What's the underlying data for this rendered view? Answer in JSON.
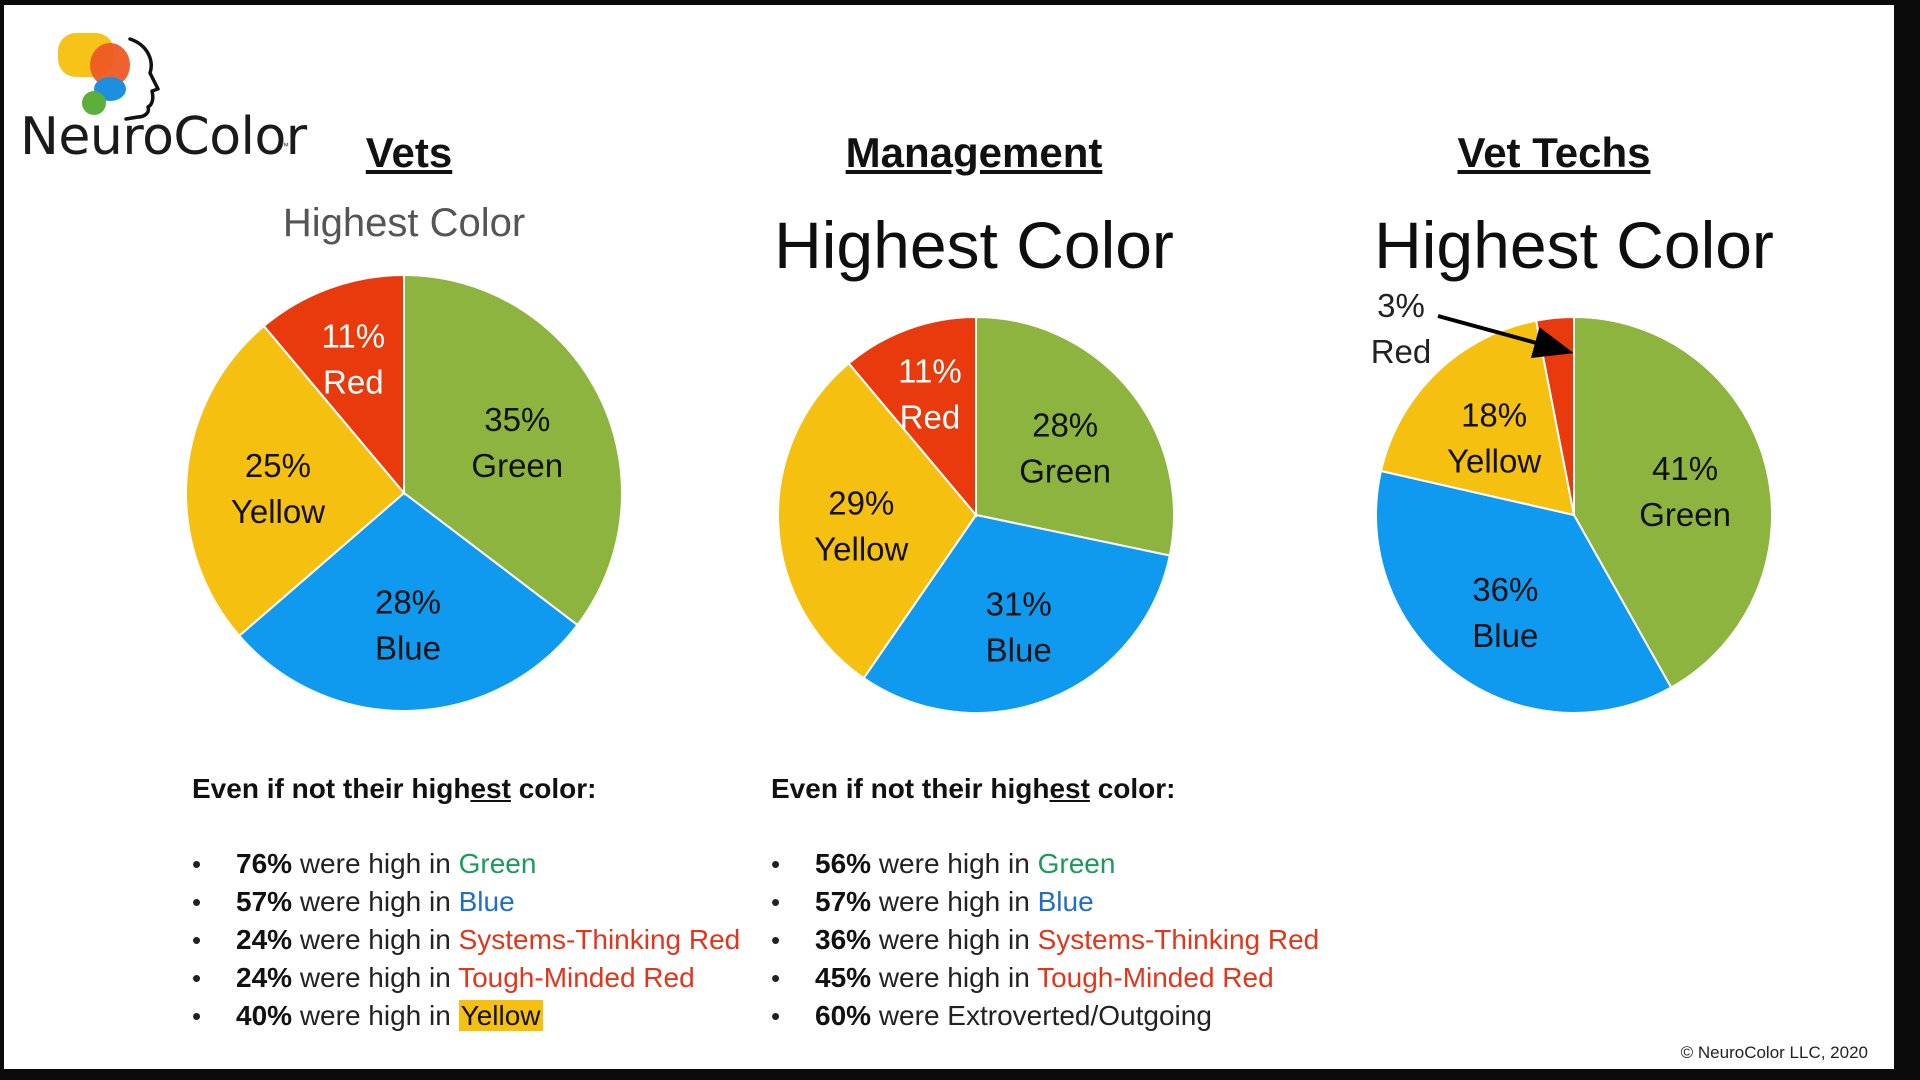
{
  "logo": {
    "text": "NeuroColor",
    "tm": "™"
  },
  "colors": {
    "green": "#8CB43F",
    "blue": "#0F9AF0",
    "yellow": "#F5C010",
    "red": "#E83A0D",
    "green_text": "#1C9A5A",
    "blue_text": "#1F6FC6",
    "red_text": "#E0361B",
    "yellow_highlight": "#F5C010"
  },
  "charts": [
    {
      "group": "Vets",
      "title": "Highest Color",
      "title_style": "small",
      "chart_data": {
        "type": "pie",
        "slices": [
          {
            "label": "Green",
            "value": 35,
            "pct": "35%",
            "color": "#8CB43F",
            "text_color": "#111111"
          },
          {
            "label": "Blue",
            "value": 28,
            "pct": "28%",
            "color": "#0F9AF0",
            "text_color": "#111111"
          },
          {
            "label": "Yellow",
            "value": 25,
            "pct": "25%",
            "color": "#F5C010",
            "text_color": "#111111"
          },
          {
            "label": "Red",
            "value": 11,
            "pct": "11%",
            "color": "#E83A0D",
            "text_color": "#FFFFFF"
          }
        ]
      }
    },
    {
      "group": "Management",
      "title": "Highest Color",
      "title_style": "big",
      "chart_data": {
        "type": "pie",
        "slices": [
          {
            "label": "Green",
            "value": 28,
            "pct": "28%",
            "color": "#8CB43F",
            "text_color": "#111111"
          },
          {
            "label": "Blue",
            "value": 31,
            "pct": "31%",
            "color": "#0F9AF0",
            "text_color": "#111111"
          },
          {
            "label": "Yellow",
            "value": 29,
            "pct": "29%",
            "color": "#F5C010",
            "text_color": "#111111"
          },
          {
            "label": "Red",
            "value": 11,
            "pct": "11%",
            "color": "#E83A0D",
            "text_color": "#FFFFFF"
          }
        ]
      }
    },
    {
      "group": "Vet Techs",
      "title": "Highest Color",
      "title_style": "big",
      "chart_data": {
        "type": "pie",
        "slices": [
          {
            "label": "Green",
            "value": 41,
            "pct": "41%",
            "color": "#8CB43F",
            "text_color": "#111111"
          },
          {
            "label": "Blue",
            "value": 36,
            "pct": "36%",
            "color": "#0F9AF0",
            "text_color": "#111111"
          },
          {
            "label": "Yellow",
            "value": 18,
            "pct": "18%",
            "color": "#F5C010",
            "text_color": "#111111"
          },
          {
            "label": "Red",
            "value": 3,
            "pct": "3%",
            "color": "#E83A0D",
            "text_color": "#222222",
            "callout": true
          }
        ]
      }
    }
  ],
  "notes": [
    {
      "heading_pre": "Even if not their high",
      "heading_u": "est",
      "heading_post": " color:",
      "items": [
        {
          "pct": "76%",
          "text": " were high in ",
          "term": "Green",
          "term_color": "#1C9A5A"
        },
        {
          "pct": "57%",
          "text": " were high in ",
          "term": "Blue",
          "term_color": "#1F6FC6"
        },
        {
          "pct": "24%",
          "text": " were high in ",
          "term": "Systems-Thinking Red",
          "term_color": "#E0361B"
        },
        {
          "pct": "24%",
          "text": " were high in ",
          "term": "Tough-Minded Red",
          "term_color": "#E0361B"
        },
        {
          "pct": "40%",
          "text": " were high in ",
          "term": "Yellow",
          "term_color": "#111111",
          "term_bg": "#F5C010"
        }
      ]
    },
    {
      "heading_pre": "Even if not their high",
      "heading_u": "est",
      "heading_post": " color:",
      "items": [
        {
          "pct": "56%",
          "text": " were high in ",
          "term": "Green",
          "term_color": "#1C9A5A"
        },
        {
          "pct": "57%",
          "text": " were high in ",
          "term": "Blue",
          "term_color": "#1F6FC6"
        },
        {
          "pct": "36%",
          "text": " were high in ",
          "term": "Systems-Thinking Red",
          "term_color": "#E0361B"
        },
        {
          "pct": "45%",
          "text": " were high in ",
          "term": "Tough-Minded Red",
          "term_color": "#E0361B"
        },
        {
          "pct": "60%",
          "text": " were Extroverted/Outgoing",
          "term": "",
          "term_color": "#111111"
        }
      ]
    }
  ],
  "copyright": "© NeuroColor LLC, 2020"
}
